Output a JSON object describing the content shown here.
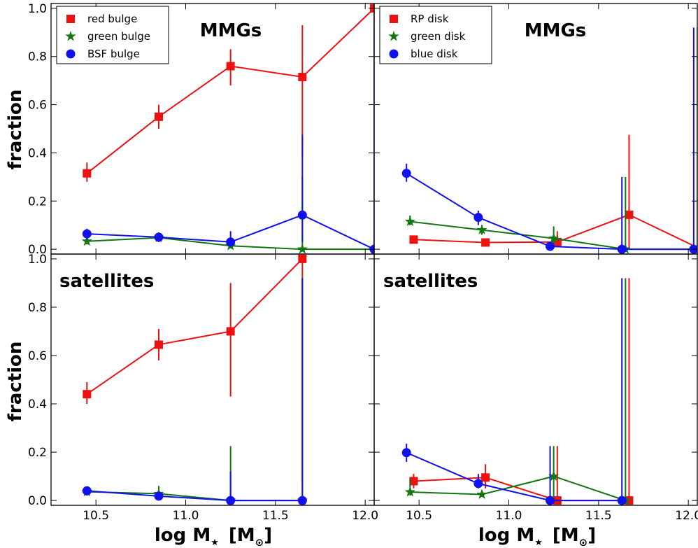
{
  "figure": {
    "ylabel": "fraction",
    "xlabel_main": "log M",
    "xlabel_sub": "★",
    "xlabel_unit_open": "[M",
    "xlabel_unit_sub": "⊙",
    "xlabel_unit_close": "]"
  },
  "chart_data": [
    {
      "type": "line",
      "panel": "top-left",
      "title": "MMGs",
      "xlim": [
        10.25,
        12.05
      ],
      "ylim": [
        -0.02,
        1.02
      ],
      "xticks": [
        "10.5",
        "11.0",
        "11.5",
        "12.0"
      ],
      "yticks": [
        "0.0",
        "0.2",
        "0.4",
        "0.6",
        "0.8",
        "1.0"
      ],
      "legend": "top-left",
      "series": [
        {
          "name": "red bulge",
          "color": "#ee1111",
          "marker": "square",
          "x": [
            10.45,
            10.85,
            11.25,
            11.65,
            12.05
          ],
          "y": [
            0.315,
            0.55,
            0.76,
            0.715,
            1.0
          ],
          "err": [
            [
              0.28,
              0.36
            ],
            [
              0.5,
              0.6
            ],
            [
              0.68,
              0.83
            ],
            [
              0.38,
              0.93
            ],
            [
              0.08,
              1.0
            ]
          ]
        },
        {
          "name": "green bulge",
          "color": "#117711",
          "marker": "star",
          "x": [
            10.45,
            10.85,
            11.25,
            11.65,
            12.05
          ],
          "y": [
            0.033,
            0.048,
            0.014,
            0.0,
            0.0
          ],
          "err": [
            [
              0.02,
              0.05
            ],
            [
              0.03,
              0.07
            ],
            [
              0.005,
              0.03
            ],
            [
              0.0,
              0.3
            ],
            [
              0.0,
              0.92
            ]
          ]
        },
        {
          "name": "BSF bulge",
          "color": "#1111ee",
          "marker": "circle",
          "x": [
            10.45,
            10.85,
            11.25,
            11.65,
            12.05
          ],
          "y": [
            0.064,
            0.05,
            0.03,
            0.142,
            0.0
          ],
          "err": [
            [
              0.04,
              0.085
            ],
            [
              0.03,
              0.07
            ],
            [
              0.01,
              0.075
            ],
            [
              0.03,
              0.475
            ],
            [
              0.0,
              0.92
            ]
          ]
        }
      ]
    },
    {
      "type": "line",
      "panel": "top-right",
      "title": "MMGs",
      "xlim": [
        10.25,
        12.05
      ],
      "ylim": [
        -0.02,
        1.02
      ],
      "xticks": [
        "10.5",
        "11.0",
        "11.5",
        "12.0"
      ],
      "yticks": [
        "0.0",
        "0.2",
        "0.4",
        "0.6",
        "0.8",
        "1.0"
      ],
      "legend": "top-left",
      "series": [
        {
          "name": "RP disk",
          "color": "#ee1111",
          "marker": "square",
          "x": [
            10.47,
            10.87,
            11.27,
            11.67,
            12.07
          ],
          "y": [
            0.04,
            0.028,
            0.03,
            0.143,
            0.0
          ],
          "err": [
            [
              0.03,
              0.05
            ],
            [
              0.02,
              0.035
            ],
            [
              0.01,
              0.075
            ],
            [
              0.0,
              0.475
            ],
            [
              0.0,
              0.92
            ]
          ]
        },
        {
          "name": "green disk",
          "color": "#117711",
          "marker": "star",
          "x": [
            10.45,
            10.85,
            11.25,
            11.65,
            12.05
          ],
          "y": [
            0.115,
            0.08,
            0.045,
            0.0,
            0.0
          ],
          "err": [
            [
              0.1,
              0.14
            ],
            [
              0.06,
              0.1
            ],
            [
              0.02,
              0.095
            ],
            [
              0.0,
              0.3
            ],
            [
              0.0,
              0.92
            ]
          ]
        },
        {
          "name": "blue disk",
          "color": "#1111ee",
          "marker": "circle",
          "x": [
            10.43,
            10.83,
            11.23,
            11.63,
            12.03
          ],
          "y": [
            0.315,
            0.132,
            0.012,
            0.0,
            0.0
          ],
          "err": [
            [
              0.28,
              0.355
            ],
            [
              0.1,
              0.16
            ],
            [
              0.0,
              0.03
            ],
            [
              0.0,
              0.3
            ],
            [
              0.0,
              0.92
            ]
          ]
        }
      ]
    },
    {
      "type": "line",
      "panel": "bottom-left",
      "title": "satellites",
      "xlim": [
        10.25,
        12.05
      ],
      "ylim": [
        -0.02,
        1.02
      ],
      "xticks": [
        "10.5",
        "11.0",
        "11.5",
        "12.0"
      ],
      "yticks": [
        "0.0",
        "0.2",
        "0.4",
        "0.6",
        "0.8",
        "1.0"
      ],
      "series": [
        {
          "color": "#ee1111",
          "marker": "square",
          "x": [
            10.45,
            10.85,
            11.25,
            11.65
          ],
          "y": [
            0.44,
            0.645,
            0.7,
            1.0
          ],
          "err": [
            [
              0.4,
              0.49
            ],
            [
              0.58,
              0.71
            ],
            [
              0.43,
              0.9
            ],
            [
              0.08,
              1.0
            ]
          ]
        },
        {
          "color": "#117711",
          "marker": "star",
          "x": [
            10.45,
            10.85,
            11.25,
            11.65
          ],
          "y": [
            0.036,
            0.028,
            0.0,
            0.0
          ],
          "err": [
            [
              0.02,
              0.055
            ],
            [
              0.01,
              0.06
            ],
            [
              0.0,
              0.225
            ],
            [
              0.0,
              0.92
            ]
          ]
        },
        {
          "color": "#1111ee",
          "marker": "circle",
          "x": [
            10.45,
            10.85,
            11.25,
            11.65
          ],
          "y": [
            0.04,
            0.018,
            0.0,
            0.0
          ],
          "err": [
            [
              0.025,
              0.055
            ],
            [
              0.005,
              0.035
            ],
            [
              0.0,
              0.12
            ],
            [
              0.0,
              0.92
            ]
          ]
        }
      ]
    },
    {
      "type": "line",
      "panel": "bottom-right",
      "title": "satellites",
      "xlim": [
        10.25,
        12.05
      ],
      "ylim": [
        -0.02,
        1.02
      ],
      "xticks": [
        "10.5",
        "11.0",
        "11.5",
        "12.0"
      ],
      "yticks": [
        "0.0",
        "0.2",
        "0.4",
        "0.6",
        "0.8",
        "1.0"
      ],
      "series": [
        {
          "color": "#ee1111",
          "marker": "square",
          "x": [
            10.47,
            10.87,
            11.27,
            11.67
          ],
          "y": [
            0.08,
            0.095,
            0.0,
            0.0
          ],
          "err": [
            [
              0.05,
              0.11
            ],
            [
              0.05,
              0.15
            ],
            [
              0.0,
              0.225
            ],
            [
              0.0,
              0.92
            ]
          ]
        },
        {
          "color": "#117711",
          "marker": "star",
          "x": [
            10.45,
            10.85,
            11.25,
            11.65
          ],
          "y": [
            0.035,
            0.025,
            0.1,
            0.0
          ],
          "err": [
            [
              0.02,
              0.09
            ],
            [
              0.015,
              0.04
            ],
            [
              0.0,
              0.225
            ],
            [
              0.0,
              0.92
            ]
          ]
        },
        {
          "color": "#1111ee",
          "marker": "circle",
          "x": [
            10.43,
            10.83,
            11.23,
            11.63
          ],
          "y": [
            0.198,
            0.07,
            0.0,
            0.0
          ],
          "err": [
            [
              0.16,
              0.235
            ],
            [
              0.05,
              0.11
            ],
            [
              0.0,
              0.225
            ],
            [
              0.0,
              0.92
            ]
          ]
        }
      ]
    }
  ]
}
